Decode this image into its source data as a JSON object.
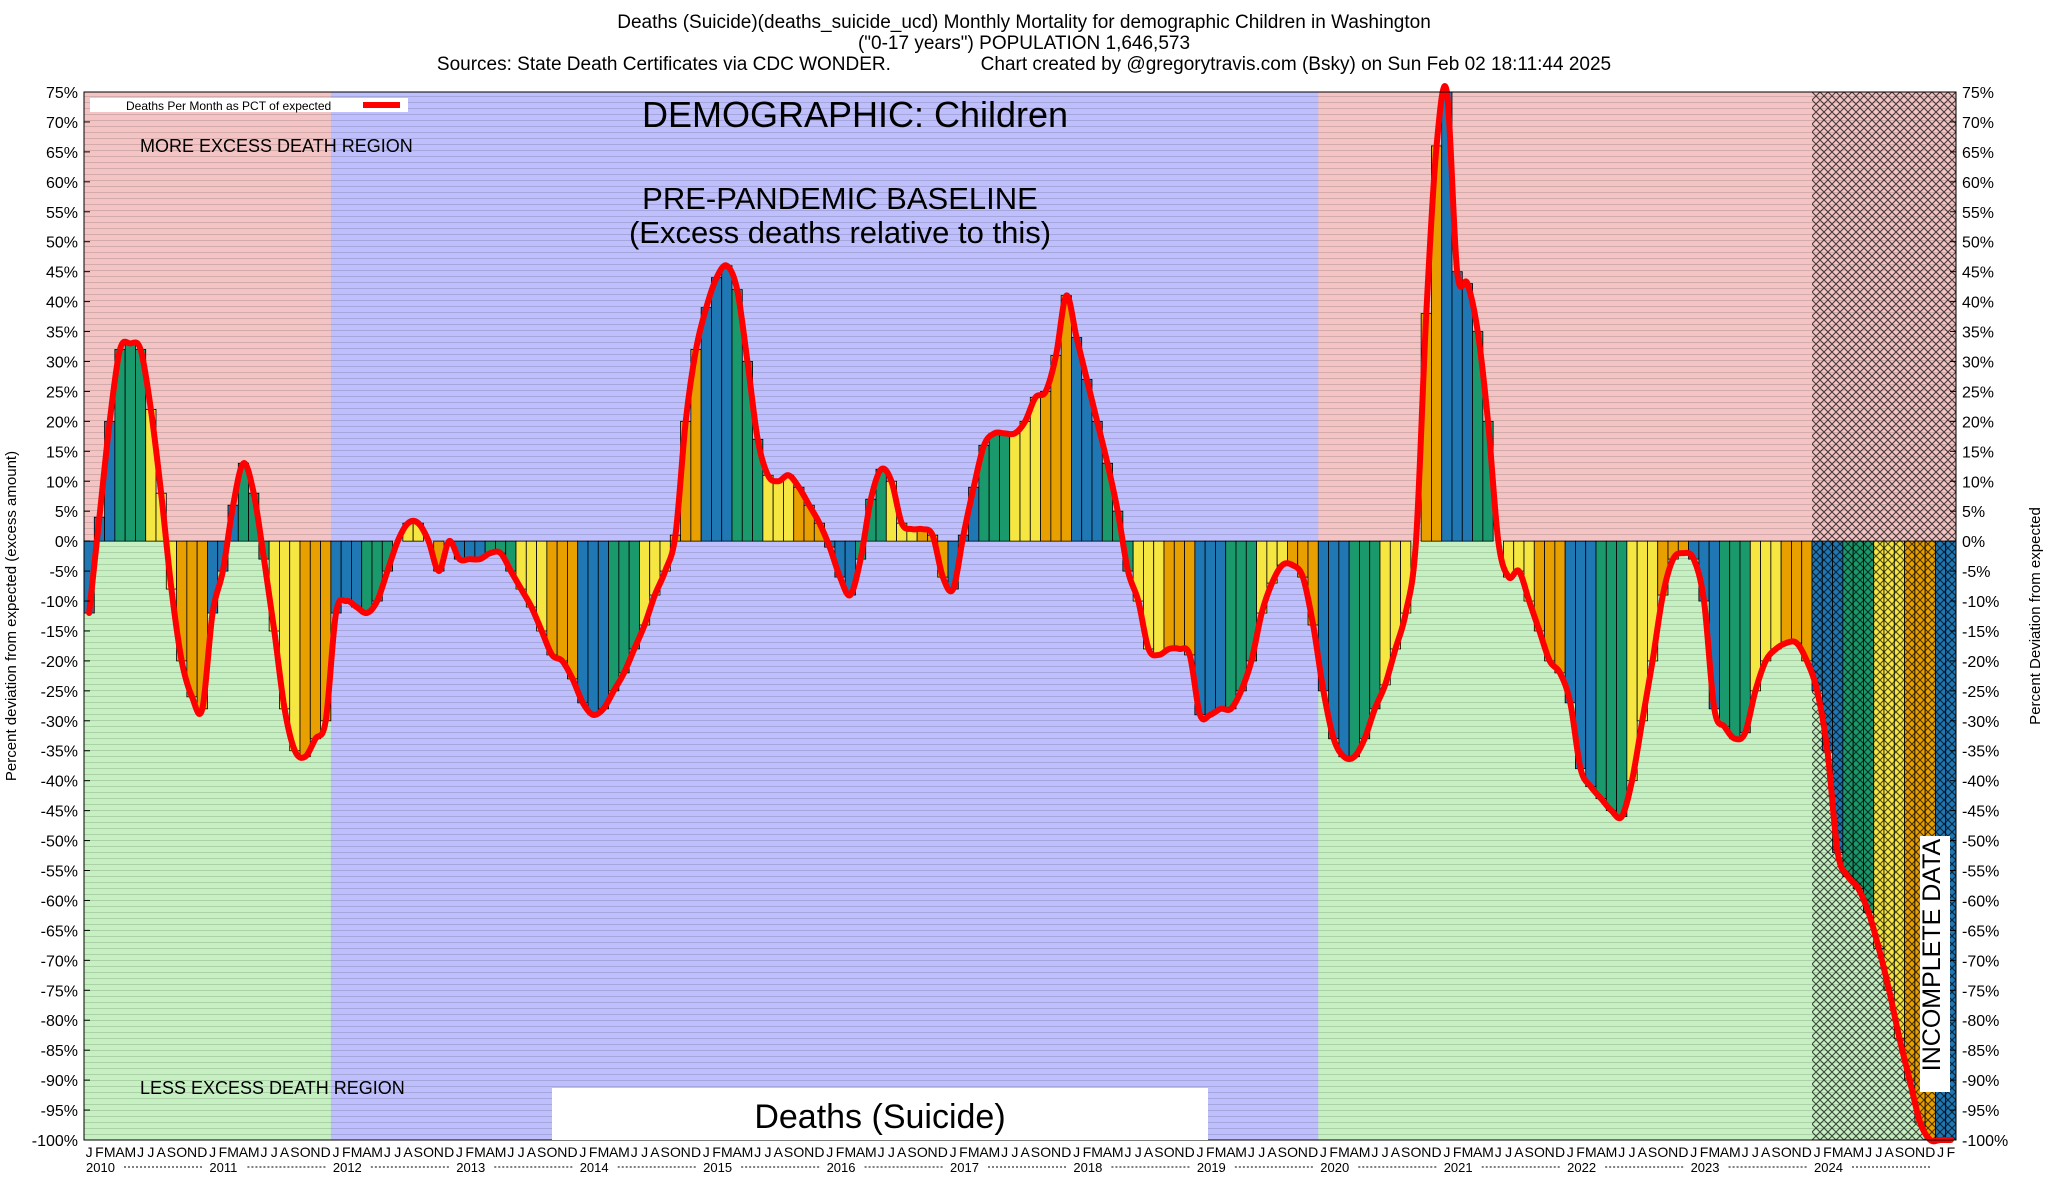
{
  "header": {
    "title": "Deaths (Suicide)(deaths_suicide_ucd) Monthly Mortality for demographic Children in Washington",
    "subtitle": "(\"0-17 years\") POPULATION 1,646,573",
    "sources": "Sources: State Death Certificates via CDC WONDER.",
    "credit": "Chart created by @gregorytravis.com (Bsky) on Sun Feb 02 18:11:44 2025"
  },
  "chart_data": {
    "type": "bar",
    "title": "DEMOGRAPHIC: Children",
    "ylabel_left": "Percent deviation from expected (excess amount)",
    "ylabel_right": "Percent Deviation from expected",
    "legend": {
      "label": "Deaths Per Month as PCT of expected",
      "color": "#ff0000",
      "position": "top-left"
    },
    "ylim": [
      -100,
      75
    ],
    "ytick_step": 5,
    "grid": true,
    "start": "2010-01",
    "month_letters": [
      "J",
      "F",
      "M",
      "A",
      "M",
      "J",
      "J",
      "A",
      "S",
      "O",
      "N",
      "D"
    ],
    "years": [
      "2010",
      "2011",
      "2012",
      "2013",
      "2014",
      "2015",
      "2016",
      "2017",
      "2018",
      "2019",
      "2020",
      "2021",
      "2022",
      "2023",
      "2024"
    ],
    "values": [
      -12,
      4,
      20,
      32,
      33,
      32,
      22,
      8,
      -8,
      -20,
      -26,
      -28,
      -12,
      -5,
      6,
      13,
      8,
      -3,
      -15,
      -28,
      -35,
      -36,
      -33,
      -30,
      -12,
      -10,
      -11,
      -12,
      -10,
      -5,
      0,
      3,
      3,
      0,
      -5,
      0,
      -3,
      -3,
      -3,
      -2,
      -2,
      -5,
      -8,
      -11,
      -15,
      -19,
      -20,
      -23,
      -27,
      -29,
      -28,
      -25,
      -22,
      -18,
      -14,
      -9,
      -5,
      1,
      20,
      32,
      39,
      44,
      46,
      42,
      30,
      17,
      11,
      10,
      11,
      9,
      6,
      3,
      -1,
      -6,
      -9,
      -3,
      7,
      12,
      10,
      3,
      2,
      2,
      1,
      -6,
      -8,
      1,
      9,
      16,
      18,
      18,
      18,
      20,
      24,
      25,
      31,
      41,
      34,
      27,
      20,
      13,
      5,
      -5,
      -10,
      -18,
      -19,
      -18,
      -18,
      -19,
      -29,
      -29,
      -28,
      -28,
      -25,
      -20,
      -12,
      -7,
      -4,
      -4,
      -6,
      -14,
      -25,
      -33,
      -36,
      -36,
      -33,
      -28,
      -24,
      -18,
      -12,
      0,
      38,
      66,
      75,
      45,
      43,
      35,
      20,
      0,
      -6,
      -5,
      -10,
      -15,
      -20,
      -22,
      -27,
      -38,
      -41,
      -43,
      -45,
      -46,
      -40,
      -30,
      -20,
      -9,
      -3,
      -2,
      -3,
      -10,
      -28,
      -31,
      -33,
      -32,
      -25,
      -20,
      -18,
      -17,
      -17,
      -20,
      -25,
      -35,
      -52,
      -56,
      -58,
      -62,
      -68,
      -75,
      -83,
      -90,
      -97,
      -100,
      -100,
      -100
    ],
    "bar_colors": [
      "#1f77b4",
      "#1a9a6c",
      "#f5e642",
      "#e8a000"
    ],
    "regions": [
      {
        "label": "MORE EXCESS DEATH REGION",
        "color": "#f4c4c4",
        "range": [
          0,
          75
        ]
      },
      {
        "label": "LESS EXCESS DEATH REGION",
        "color": "#c6f0c2",
        "range": [
          -100,
          0
        ]
      },
      {
        "label": "PRE-PANDEMIC BASELINE",
        "sublabel": "(Excess deaths relative to this)",
        "color": "#bebffc",
        "start": "2012-01",
        "end": "2019-12"
      }
    ],
    "incomplete_label": "INCOMPLETE DATA",
    "incomplete_start": "2024-01",
    "footer_label": "Deaths (Suicide)"
  }
}
